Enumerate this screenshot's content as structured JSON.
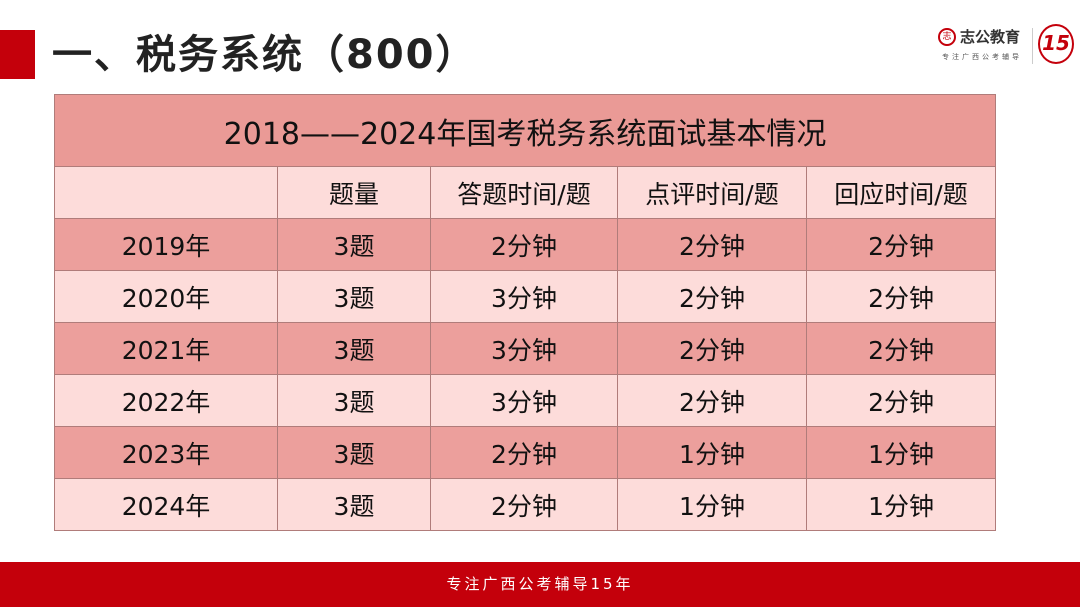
{
  "slide": {
    "title": "一、税务系统（800）"
  },
  "logo": {
    "brand": "志公教育",
    "tagline": "专注广西公考辅导",
    "anniversary": "15"
  },
  "table": {
    "caption": "2018——2024年国考税务系统面试基本情况",
    "headers": [
      "",
      "题量",
      "答题时间/题",
      "点评时间/题",
      "回应时间/题"
    ],
    "rows": [
      [
        "2019年",
        "3题",
        "2分钟",
        "2分钟",
        "2分钟"
      ],
      [
        "2020年",
        "3题",
        "3分钟",
        "2分钟",
        "2分钟"
      ],
      [
        "2021年",
        "3题",
        "3分钟",
        "2分钟",
        "2分钟"
      ],
      [
        "2022年",
        "3题",
        "3分钟",
        "2分钟",
        "2分钟"
      ],
      [
        "2023年",
        "3题",
        "2分钟",
        "1分钟",
        "1分钟"
      ],
      [
        "2024年",
        "3题",
        "2分钟",
        "1分钟",
        "1分钟"
      ]
    ]
  },
  "footer": {
    "text": "专注广西公考辅导15年"
  },
  "colors": {
    "accent": "#c4000b",
    "header": "#ea9a96",
    "row_dark": "#ec9f9c",
    "row_light": "#fddcda"
  }
}
